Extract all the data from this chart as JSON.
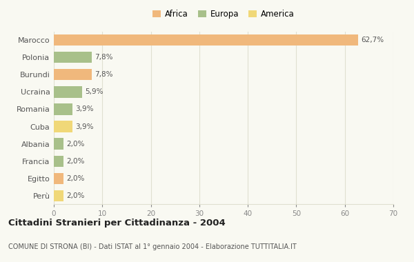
{
  "categories": [
    "Marocco",
    "Polonia",
    "Burundi",
    "Ucraina",
    "Romania",
    "Cuba",
    "Albania",
    "Francia",
    "Egitto",
    "Perù"
  ],
  "values": [
    62.7,
    7.8,
    7.8,
    5.9,
    3.9,
    3.9,
    2.0,
    2.0,
    2.0,
    2.0
  ],
  "labels": [
    "62,7%",
    "7,8%",
    "7,8%",
    "5,9%",
    "3,9%",
    "3,9%",
    "2,0%",
    "2,0%",
    "2,0%",
    "2,0%"
  ],
  "colors": [
    "#f0b87c",
    "#a8c08a",
    "#f0b87c",
    "#a8c08a",
    "#a8c08a",
    "#f0d878",
    "#a8c08a",
    "#a8c08a",
    "#f0b87c",
    "#f0d878"
  ],
  "legend_labels": [
    "Africa",
    "Europa",
    "America"
  ],
  "legend_colors": [
    "#f0b87c",
    "#a8c08a",
    "#f0d878"
  ],
  "title": "Cittadini Stranieri per Cittadinanza - 2004",
  "subtitle": "COMUNE DI STRONA (BI) - Dati ISTAT al 1° gennaio 2004 - Elaborazione TUTTITALIA.IT",
  "xlim": [
    0,
    70
  ],
  "xticks": [
    0,
    10,
    20,
    30,
    40,
    50,
    60,
    70
  ],
  "background_color": "#f9f9f2",
  "grid_color": "#e0e0d0"
}
